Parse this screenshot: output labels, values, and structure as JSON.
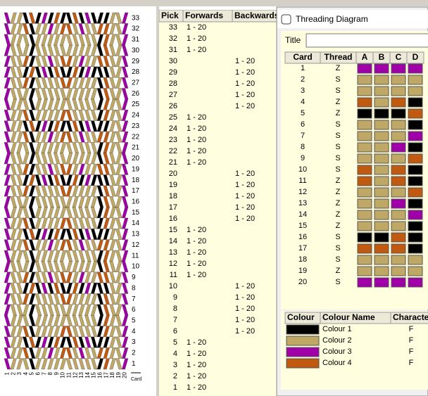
{
  "pattern": {
    "card_axis_label": "Card"
  },
  "picks": {
    "headers": [
      "Pick",
      "Forwards",
      "Backwards"
    ],
    "rows": [
      {
        "pick": "33",
        "forwards": "1 - 20"
      },
      {
        "pick": "32",
        "forwards": "1 - 20"
      },
      {
        "pick": "31",
        "forwards": "1 - 20"
      },
      {
        "pick": "30",
        "backwards": "1 - 20"
      },
      {
        "pick": "29",
        "backwards": "1 - 20"
      },
      {
        "pick": "28",
        "backwards": "1 - 20"
      },
      {
        "pick": "27",
        "backwards": "1 - 20"
      },
      {
        "pick": "26",
        "backwards": "1 - 20"
      },
      {
        "pick": "25",
        "forwards": "1 - 20"
      },
      {
        "pick": "24",
        "forwards": "1 - 20"
      },
      {
        "pick": "23",
        "forwards": "1 - 20"
      },
      {
        "pick": "22",
        "forwards": "1 - 20"
      },
      {
        "pick": "21",
        "forwards": "1 - 20"
      },
      {
        "pick": "20",
        "backwards": "1 - 20"
      },
      {
        "pick": "19",
        "backwards": "1 - 20"
      },
      {
        "pick": "18",
        "backwards": "1 - 20"
      },
      {
        "pick": "17",
        "backwards": "1 - 20"
      },
      {
        "pick": "16",
        "backwards": "1 - 20"
      },
      {
        "pick": "15",
        "forwards": "1 - 20"
      },
      {
        "pick": "14",
        "forwards": "1 - 20"
      },
      {
        "pick": "13",
        "forwards": "1 - 20"
      },
      {
        "pick": "12",
        "forwards": "1 - 20"
      },
      {
        "pick": "11",
        "forwards": "1 - 20"
      },
      {
        "pick": "10",
        "backwards": "1 - 20"
      },
      {
        "pick": "9",
        "backwards": "1 - 20"
      },
      {
        "pick": "8",
        "backwards": "1 - 20"
      },
      {
        "pick": "7",
        "backwards": "1 - 20"
      },
      {
        "pick": "6",
        "backwards": "1 - 20"
      },
      {
        "pick": "5",
        "forwards": "1 - 20"
      },
      {
        "pick": "4",
        "forwards": "1 - 20"
      },
      {
        "pick": "3",
        "forwards": "1 - 20"
      },
      {
        "pick": "2",
        "forwards": "1 - 20"
      },
      {
        "pick": "1",
        "forwards": "1 - 20"
      }
    ]
  },
  "threading": {
    "window_title": "Threading Diagram",
    "title_label": "Title",
    "headers": [
      "Card",
      "Thread",
      "A",
      "B",
      "C",
      "D"
    ],
    "rows": [
      {
        "card": "1",
        "thread": "Z",
        "holes": [
          "#a000a8",
          "#a000a8",
          "#a000a8",
          "#a000a8"
        ]
      },
      {
        "card": "2",
        "thread": "S",
        "holes": [
          "#bfa865",
          "#bfa865",
          "#bfa865",
          "#bfa865"
        ]
      },
      {
        "card": "3",
        "thread": "S",
        "holes": [
          "#bfa865",
          "#bfa865",
          "#bfa865",
          "#bfa865"
        ]
      },
      {
        "card": "4",
        "thread": "Z",
        "holes": [
          "#c05a10",
          "#bfa865",
          "#c05a10",
          "#000000"
        ]
      },
      {
        "card": "5",
        "thread": "Z",
        "holes": [
          "#000000",
          "#000000",
          "#000000",
          "#c05a10"
        ]
      },
      {
        "card": "6",
        "thread": "S",
        "holes": [
          "#bfa865",
          "#bfa865",
          "#bfa865",
          "#000000"
        ]
      },
      {
        "card": "7",
        "thread": "S",
        "holes": [
          "#bfa865",
          "#bfa865",
          "#bfa865",
          "#a000a8"
        ]
      },
      {
        "card": "8",
        "thread": "S",
        "holes": [
          "#bfa865",
          "#bfa865",
          "#a000a8",
          "#000000"
        ]
      },
      {
        "card": "9",
        "thread": "S",
        "holes": [
          "#bfa865",
          "#bfa865",
          "#bfa865",
          "#c05a10"
        ]
      },
      {
        "card": "10",
        "thread": "S",
        "holes": [
          "#c05a10",
          "#bfa865",
          "#c05a10",
          "#000000"
        ]
      },
      {
        "card": "11",
        "thread": "Z",
        "holes": [
          "#c05a10",
          "#bfa865",
          "#c05a10",
          "#000000"
        ]
      },
      {
        "card": "12",
        "thread": "Z",
        "holes": [
          "#bfa865",
          "#bfa865",
          "#bfa865",
          "#c05a10"
        ]
      },
      {
        "card": "13",
        "thread": "Z",
        "holes": [
          "#bfa865",
          "#bfa865",
          "#a000a8",
          "#000000"
        ]
      },
      {
        "card": "14",
        "thread": "Z",
        "holes": [
          "#bfa865",
          "#bfa865",
          "#bfa865",
          "#a000a8"
        ]
      },
      {
        "card": "15",
        "thread": "Z",
        "holes": [
          "#bfa865",
          "#bfa865",
          "#bfa865",
          "#000000"
        ]
      },
      {
        "card": "16",
        "thread": "S",
        "holes": [
          "#000000",
          "#000000",
          "#c05a10",
          "#000000"
        ]
      },
      {
        "card": "17",
        "thread": "S",
        "holes": [
          "#c05a10",
          "#c05a10",
          "#c05a10",
          "#000000"
        ]
      },
      {
        "card": "18",
        "thread": "S",
        "holes": [
          "#bfa865",
          "#bfa865",
          "#bfa865",
          "#bfa865"
        ]
      },
      {
        "card": "19",
        "thread": "Z",
        "holes": [
          "#bfa865",
          "#bfa865",
          "#bfa865",
          "#bfa865"
        ]
      },
      {
        "card": "20",
        "thread": "S",
        "holes": [
          "#a000a8",
          "#a000a8",
          "#a000a8",
          "#a000a8"
        ]
      }
    ]
  },
  "colours": {
    "headers": [
      "Colour",
      "Colour Name",
      "Character"
    ],
    "rows": [
      {
        "color": "#000000",
        "name": "Colour 1",
        "character": "F"
      },
      {
        "color": "#bfa865",
        "name": "Colour 2",
        "character": "F"
      },
      {
        "color": "#a000a8",
        "name": "Colour 3",
        "character": "F"
      },
      {
        "color": "#c05a10",
        "name": "Colour 4",
        "character": "F"
      }
    ]
  }
}
